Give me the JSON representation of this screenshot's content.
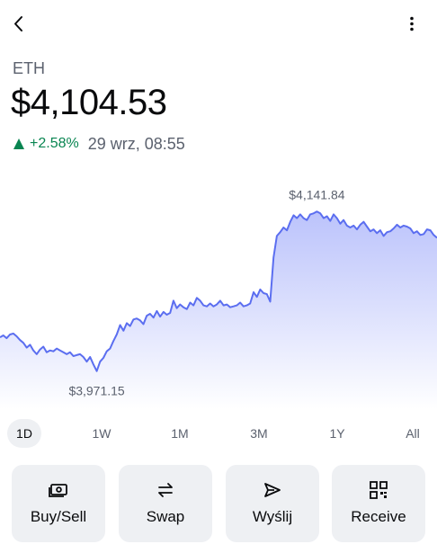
{
  "header": {
    "back_icon": "chevron-left-icon",
    "more_icon": "more-vertical-icon"
  },
  "asset": {
    "symbol": "ETH",
    "price": "$4,104.53",
    "change": "+2.58%",
    "change_direction": "up",
    "timestamp": "29 wrz, 08:55",
    "colors": {
      "up": "#098551",
      "line": "#5b6ef0",
      "area_top": "#b8c0fb"
    }
  },
  "chart_data": {
    "type": "area",
    "high_label": "$4,141.84",
    "low_label": "$3,971.15",
    "y_range": [
      3940,
      4170
    ],
    "series": [
      {
        "values": [
          4007,
          4009,
          4006,
          4010,
          4011,
          4008,
          4004,
          4001,
          3996,
          3999,
          3993,
          3989,
          3994,
          3997,
          3991,
          3993,
          3992,
          3995,
          3993,
          3991,
          3989,
          3991,
          3987,
          3988,
          3989,
          3986,
          3981,
          3986,
          3978,
          3971,
          3981,
          3985,
          3992,
          3995,
          4003,
          4010,
          4020,
          4014,
          4022,
          4019,
          4026,
          4027,
          4025,
          4021,
          4030,
          4032,
          4028,
          4035,
          4029,
          4034,
          4031,
          4033,
          4046,
          4038,
          4042,
          4039,
          4037,
          4044,
          4041,
          4049,
          4046,
          4041,
          4040,
          4043,
          4040,
          4042,
          4046,
          4041,
          4042,
          4039,
          4040,
          4041,
          4044,
          4040,
          4041,
          4043,
          4055,
          4050,
          4058,
          4054,
          4053,
          4045,
          4092,
          4115,
          4119,
          4124,
          4121,
          4130,
          4137,
          4134,
          4138,
          4134,
          4132,
          4138,
          4139,
          4141,
          4139,
          4134,
          4136,
          4131,
          4138,
          4134,
          4128,
          4132,
          4126,
          4124,
          4126,
          4122,
          4127,
          4130,
          4125,
          4120,
          4122,
          4118,
          4121,
          4115,
          4119,
          4120,
          4123,
          4127,
          4124,
          4126,
          4125,
          4123,
          4118,
          4120,
          4116,
          4117,
          4122,
          4121,
          4116,
          4113
        ]
      }
    ]
  },
  "ranges": {
    "active": "1D",
    "items": [
      "1D",
      "1W",
      "1M",
      "3M",
      "1Y",
      "All"
    ]
  },
  "actions": [
    {
      "label": "Buy/Sell",
      "icon": "cash-icon"
    },
    {
      "label": "Swap",
      "icon": "swap-arrows-icon"
    },
    {
      "label": "Wyślij",
      "icon": "send-icon"
    },
    {
      "label": "Receive",
      "icon": "qr-code-icon"
    }
  ]
}
